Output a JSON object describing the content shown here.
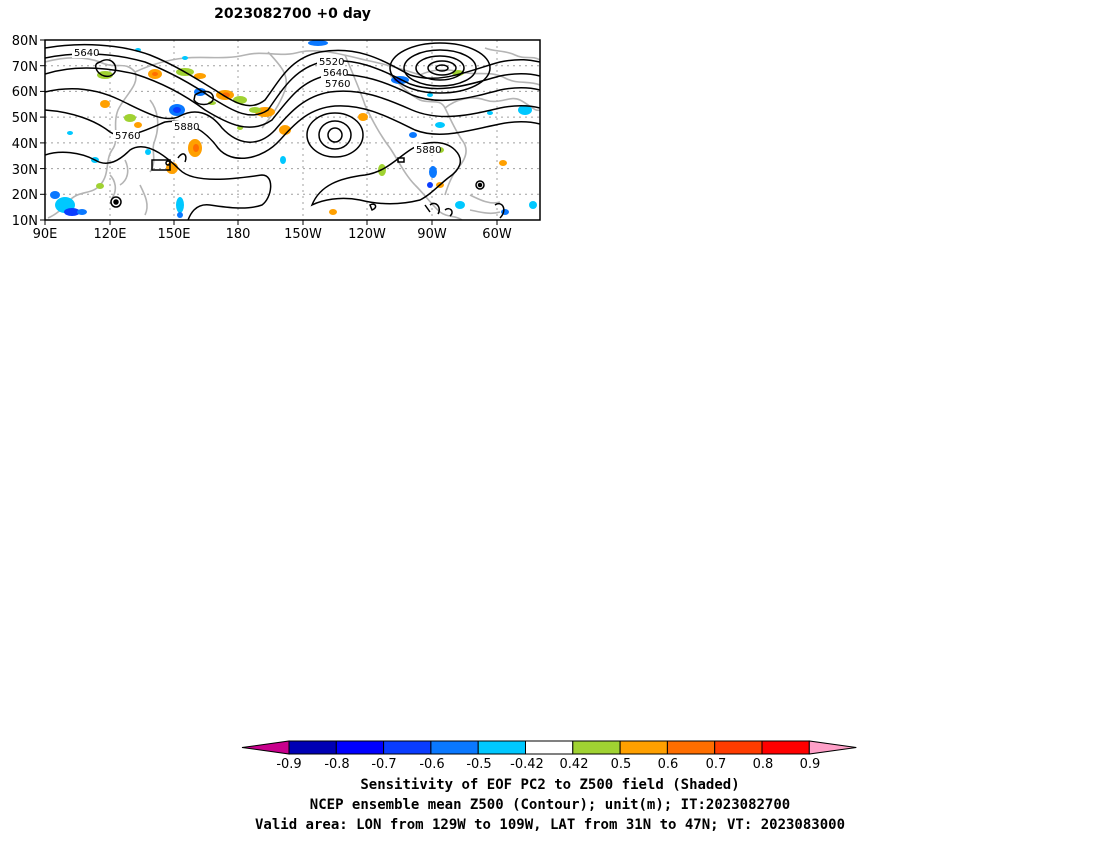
{
  "map": {
    "title": "2023082700  +0 day",
    "lat_labels": [
      "80N",
      "70N",
      "60N",
      "50N",
      "40N",
      "30N",
      "20N",
      "10N"
    ],
    "lon_labels": [
      "90E",
      "120E",
      "150E",
      "180",
      "150W",
      "120W",
      "90W",
      "60W"
    ],
    "contour_labels": [
      "5640",
      "5520",
      "5640",
      "5760",
      "5760",
      "5880",
      "5880"
    ],
    "colors": {
      "contour": "#000000",
      "coastline": "#b4b4b4",
      "grid": "#a0a0a0"
    }
  },
  "colorbar": {
    "tick_labels": [
      "-0.9",
      "-0.8",
      "-0.7",
      "-0.6",
      "-0.5",
      "-0.42",
      "0.42",
      "0.5",
      "0.6",
      "0.7",
      "0.8",
      "0.9"
    ],
    "colors": [
      "#c8008c",
      "#0000b4",
      "#0000ff",
      "#0a3cff",
      "#0a78ff",
      "#00c8ff",
      "#ffffff",
      "#a0d232",
      "#ffa000",
      "#ff6e00",
      "#ff3c00",
      "#ff0000",
      "#ffa0c8"
    ]
  },
  "captions": {
    "line1": "Sensitivity of EOF PC2 to Z500 field (Shaded)",
    "line2": "NCEP ensemble mean Z500 (Contour); unit(m); IT:2023082700",
    "line3": "Valid area: LON from 129W to 109W, LAT from 31N to 47N; VT: 2023083000"
  }
}
